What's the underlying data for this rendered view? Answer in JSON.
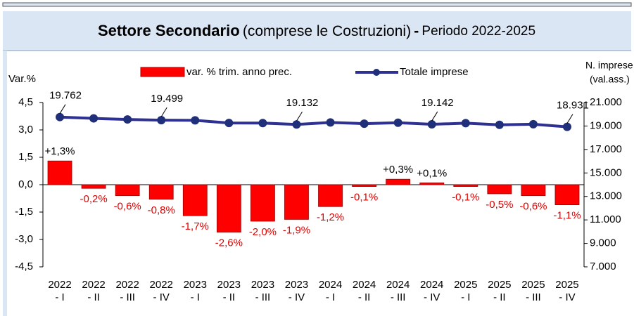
{
  "chart_data": {
    "type": "bar_line",
    "title_parts": [
      "Settore Secondario",
      "(comprese le Costruzioni)",
      "-",
      "Periodo 2022-2025"
    ],
    "y_label": "Var.%",
    "y2_label": [
      "N. imprese",
      "(val.ass.)"
    ],
    "categories": [
      [
        "2022",
        "- I"
      ],
      [
        "2022",
        "- II"
      ],
      [
        "2022",
        "- III"
      ],
      [
        "2022",
        "- IV"
      ],
      [
        "2023",
        "- I"
      ],
      [
        "2023",
        "- II"
      ],
      [
        "2023",
        "- III"
      ],
      [
        "2023",
        "- IV"
      ],
      [
        "2024",
        "- I"
      ],
      [
        "2024",
        "- II"
      ],
      [
        "2024",
        "- III"
      ],
      [
        "2024",
        "- IV"
      ],
      [
        "2025",
        "- I"
      ],
      [
        "2025",
        "- II"
      ],
      [
        "2025",
        "- III"
      ],
      [
        "2025",
        "- IV"
      ]
    ],
    "series": [
      {
        "name": "var. % trim. anno prec.",
        "color": "#ff0000",
        "kind": "bar",
        "values": [
          1.3,
          -0.2,
          -0.6,
          -0.8,
          -1.7,
          -2.6,
          -2.0,
          -1.9,
          -1.2,
          -0.1,
          0.3,
          0.1,
          -0.1,
          -0.5,
          -0.6,
          -1.1
        ],
        "value_labels": [
          "+1,3%",
          "-0,2%",
          "-0,6%",
          "-0,8%",
          "-1,7%",
          "-2,6%",
          "-2,0%",
          "-1,9%",
          "-1,2%",
          "-0,1%",
          "+0,3%",
          "+0,1%",
          "-0,1%",
          "-0,5%",
          "-0,6%",
          "-1,1%"
        ]
      },
      {
        "name": "Totale imprese",
        "color": "#2e3192",
        "kind": "line",
        "axis": "y2",
        "values": [
          19762,
          19650,
          19560,
          19499,
          19480,
          19260,
          19250,
          19132,
          19300,
          19200,
          19280,
          19142,
          19240,
          19100,
          19150,
          18931
        ],
        "value_labels": [
          "19.762",
          null,
          null,
          "19.499",
          null,
          null,
          null,
          "19.132",
          null,
          null,
          null,
          "19.142",
          null,
          null,
          null,
          "18.931"
        ]
      }
    ],
    "ylim": [
      -4.5,
      4.5
    ],
    "yticks": [
      {
        "value": 4.5,
        "label": "4,5"
      },
      {
        "value": 3.0,
        "label": "3,0"
      },
      {
        "value": 1.5,
        "label": "1,5"
      },
      {
        "value": 0.0,
        "label": "0,0"
      },
      {
        "value": -1.5,
        "label": "-1,5"
      },
      {
        "value": -3.0,
        "label": "-3,0"
      },
      {
        "value": -4.5,
        "label": "-4,5"
      }
    ],
    "y2lim": [
      7000,
      21000
    ],
    "y2ticks": [
      {
        "value": 21000,
        "label": "21.000"
      },
      {
        "value": 19000,
        "label": "19.000"
      },
      {
        "value": 17000,
        "label": "17.000"
      },
      {
        "value": 15000,
        "label": "15.000"
      },
      {
        "value": 13000,
        "label": "13.000"
      },
      {
        "value": 11000,
        "label": "11.000"
      },
      {
        "value": 9000,
        "label": "9.000"
      },
      {
        "value": 7000,
        "label": "7.000"
      }
    ]
  }
}
